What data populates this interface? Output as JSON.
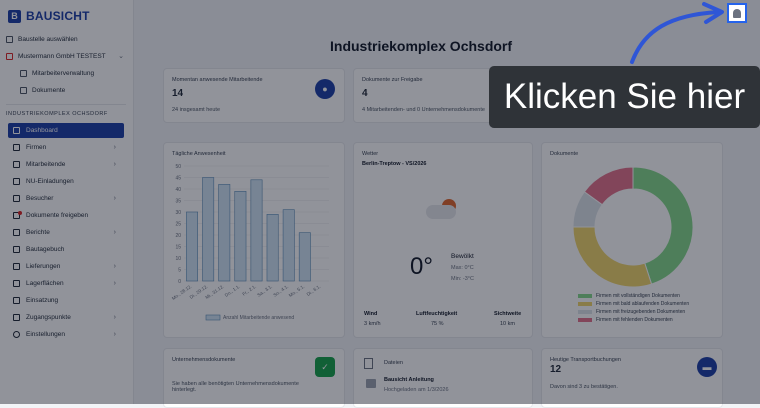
{
  "brand": {
    "name": "BAUSICHT"
  },
  "sidebar": {
    "top_items": [
      {
        "label": "Baustelle auswählen"
      },
      {
        "label": "Mustermann GmbH TESTEST"
      },
      {
        "label": "Mitarbeiterverwaltung"
      },
      {
        "label": "Dokumente"
      }
    ],
    "section_title": "INDUSTRIEKOMPLEX OCHSDORF",
    "nav": [
      {
        "label": "Dashboard"
      },
      {
        "label": "Firmen"
      },
      {
        "label": "Mitarbeitende"
      },
      {
        "label": "NU-Einladungen"
      },
      {
        "label": "Besucher"
      },
      {
        "label": "Dokumente freigeben"
      },
      {
        "label": "Berichte"
      },
      {
        "label": "Bautagebuch"
      },
      {
        "label": "Lieferungen"
      },
      {
        "label": "Lagerflächen"
      },
      {
        "label": "Einsatzung"
      },
      {
        "label": "Zugangspunkte"
      },
      {
        "label": "Einstellungen"
      }
    ]
  },
  "page": {
    "title": "Industriekomplex Ochsdorf"
  },
  "cards": {
    "present": {
      "label": "Momentan anwesende Mitarbeitende",
      "value": "14",
      "sub": "24 insgesamt heute"
    },
    "approval": {
      "label": "Dokumente zur Freigabe",
      "value": "4",
      "sub": "4 Mitarbeitenden- und 0 Unternehmensdokumente"
    },
    "attendance": {
      "label": "Tägliche Anwesenheit",
      "legend": "Anzahl Mitarbeitende anwesend"
    },
    "weather": {
      "label": "Wetter",
      "location": "Berlin-Treptow - VS/2026",
      "temp": "0°",
      "condition": "Bewölkt",
      "max": "Max: 0°C",
      "min": "Min: -3°C",
      "wind_label": "Wind",
      "wind": "3 km/h",
      "humidity_label": "Luftfeuchtigkeit",
      "humidity": "75 %",
      "visibility_label": "Sichtweite",
      "visibility": "10 km"
    },
    "documents": {
      "label": "Dokumente"
    },
    "company_docs": {
      "label": "Unternehmensdokumente",
      "sub": "Sie haben alle benötigten Unternehmensdokumente hinterlegt."
    },
    "files": {
      "label": "Dateien",
      "file_name": "Bausicht Anleitung",
      "file_meta": "Hochgeladen am 1/3/2026"
    },
    "transport": {
      "label": "Heutige Transportbuchungen",
      "value": "12",
      "sub": "Davon sind 3 zu bestätigen."
    }
  },
  "chart_data": {
    "type": "bar",
    "title": "Tägliche Anwesenheit",
    "categories": [
      "Mo., 28.12.",
      "Di., 29.12.",
      "Mi., 31.12.",
      "Do., 1.1.",
      "Fr., 2.1.",
      "Sa., 3.1.",
      "So., 4.1.",
      "Mo., 5.1.",
      "Di., 6.1."
    ],
    "series": [
      {
        "name": "Anzahl Mitarbeitende anwesend",
        "values": [
          30,
          45,
          42,
          39,
          44,
          29,
          31,
          21,
          0
        ]
      }
    ],
    "y_ticks": [
      "0",
      "5",
      "10",
      "15",
      "20",
      "25",
      "30",
      "35",
      "40",
      "45",
      "50"
    ],
    "ylim": [
      0,
      50
    ]
  },
  "donut": {
    "legend": [
      {
        "label": "Firmen mit vollständigen Dokumenten",
        "color": "#86d98a",
        "value": 45
      },
      {
        "label": "Firmen mit bald ablaufenden Dokumenten",
        "color": "#f1d56b",
        "value": 30
      },
      {
        "label": "Firmen mit freizugebenden Dokumenten",
        "color": "#dde3ea",
        "value": 10
      },
      {
        "label": "Firmen mit fehlenden Dokumenten",
        "color": "#e3718a",
        "value": 15
      }
    ]
  },
  "tooltip": {
    "text": "Klicken Sie hier"
  }
}
